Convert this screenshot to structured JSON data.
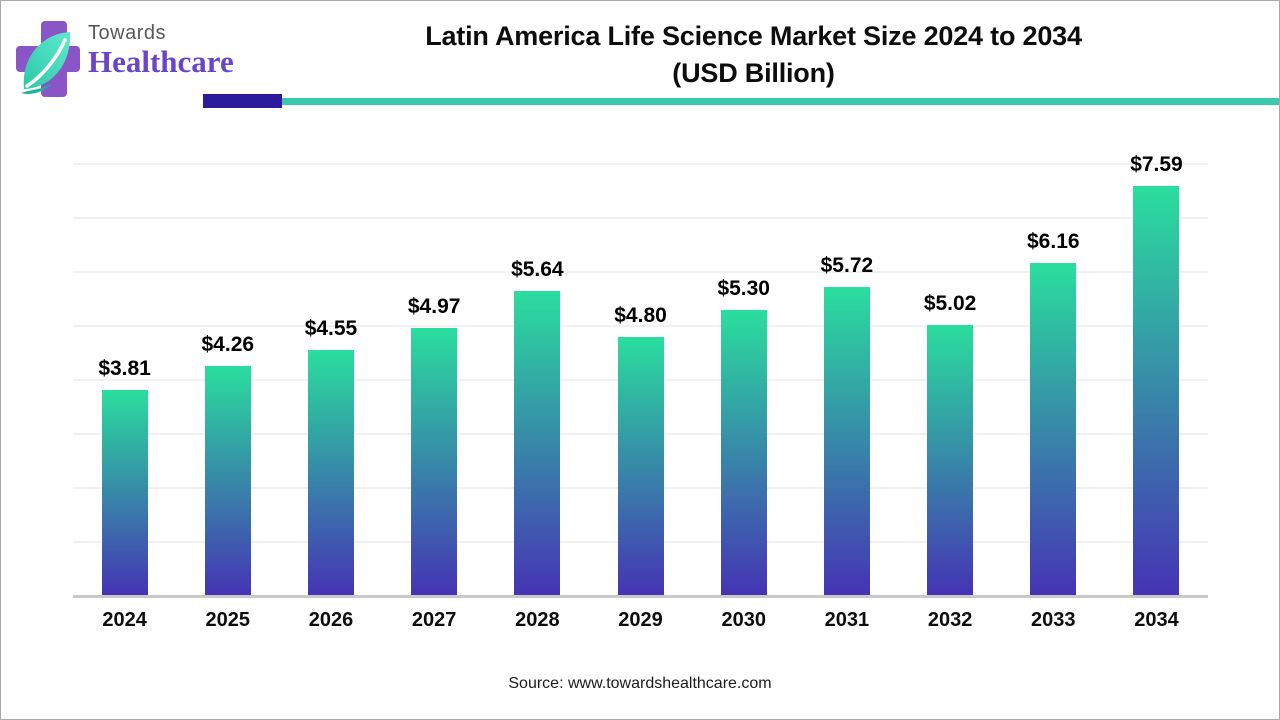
{
  "logo": {
    "brand_top": "Towards",
    "brand_bottom": "Healthcare",
    "cross_color": "#8a55c6",
    "leaf_color_light": "#55e3c7",
    "leaf_color_dark": "#1db39a"
  },
  "header": {
    "title_line1": "Latin America Life Science Market Size 2024 to 2034",
    "title_line2": "(USD Billion)",
    "divider_purple": "#2c1b9c",
    "divider_teal": "#3bc9ac"
  },
  "chart_data": {
    "type": "bar",
    "title": "Latin America Life Science Market Size 2024 to 2034 (USD Billion)",
    "categories": [
      "2024",
      "2025",
      "2026",
      "2027",
      "2028",
      "2029",
      "2030",
      "2031",
      "2032",
      "2033",
      "2034"
    ],
    "values": [
      3.81,
      4.26,
      4.55,
      4.97,
      5.64,
      4.8,
      5.3,
      5.72,
      5.02,
      6.16,
      7.59
    ],
    "labels": [
      "$3.81",
      "$4.26",
      "$4.55",
      "$4.97",
      "$5.64",
      "$4.80",
      "$5.30",
      "$5.72",
      "$5.02",
      "$6.16",
      "$7.59"
    ],
    "xlabel": "",
    "ylabel": "",
    "ylim": [
      0,
      8
    ],
    "gridline_step": 1,
    "grid": true,
    "legend": false,
    "bar_gradient_top": "#2ade9d",
    "bar_gradient_bottom": "#4533b4"
  },
  "footer": {
    "source": "Source: www.towardshealthcare.com"
  }
}
